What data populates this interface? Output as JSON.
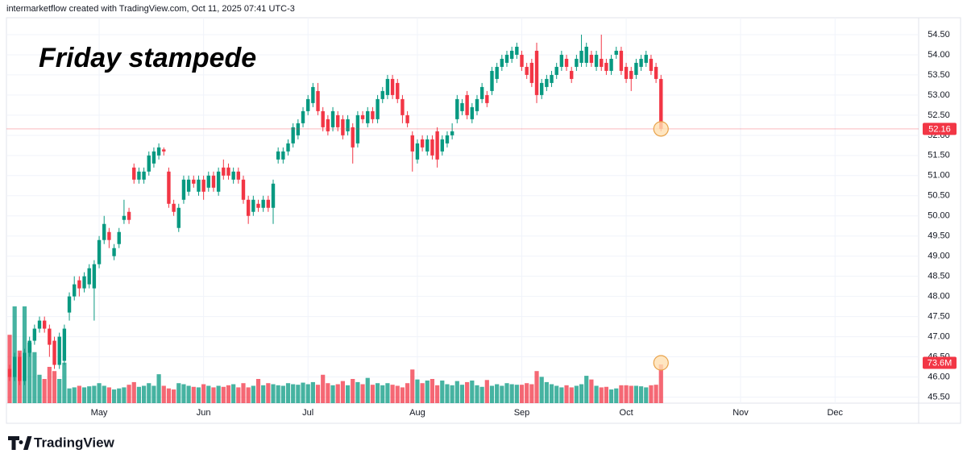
{
  "header": "intermarketflow created with TradingView.com, Oct 11, 2025 07:41 UTC-3",
  "brand": "TradingView",
  "chart_data": {
    "type": "candlestick",
    "title": "Friday stampede",
    "colors": {
      "up": "#089981",
      "down": "#f23645"
    },
    "grid": true,
    "categories": [
      null,
      null,
      null,
      null,
      null,
      null,
      null,
      null,
      null,
      null,
      null,
      null,
      null,
      null,
      null,
      null,
      null,
      null,
      "May",
      null,
      null,
      null,
      null,
      null,
      null,
      null,
      null,
      null,
      null,
      null,
      null,
      null,
      null,
      null,
      null,
      null,
      null,
      null,
      null,
      "Jun",
      null,
      null,
      null,
      null,
      null,
      null,
      null,
      null,
      null,
      null,
      null,
      null,
      null,
      null,
      null,
      null,
      null,
      null,
      null,
      null,
      "Jul",
      null,
      null,
      null,
      null,
      null,
      null,
      null,
      null,
      null,
      null,
      null,
      null,
      null,
      null,
      null,
      null,
      null,
      null,
      null,
      null,
      null,
      "Aug",
      null,
      null,
      null,
      null,
      null,
      null,
      null,
      null,
      null,
      null,
      null,
      null,
      null,
      null,
      null,
      null,
      null,
      null,
      null,
      null,
      "Sep",
      null,
      null,
      null,
      null,
      null,
      null,
      null,
      null,
      null,
      null,
      null,
      null,
      null,
      null,
      null,
      null,
      null,
      null,
      null,
      null,
      "Oct",
      null,
      null,
      null,
      null,
      null,
      null,
      null,
      null,
      null,
      null,
      null,
      null,
      null,
      null,
      null,
      null,
      null,
      null,
      null,
      null,
      null,
      null,
      "Nov",
      null,
      null,
      null,
      null,
      null,
      null,
      null,
      null,
      null,
      null,
      null,
      null,
      null,
      null,
      null,
      null,
      null,
      null,
      "Dec"
    ],
    "open": [
      46.2,
      46.0,
      46.5,
      45.9,
      46.6,
      46.9,
      47.2,
      47.4,
      47.2,
      46.9,
      46.3,
      46.4,
      47.6,
      48.0,
      48.4,
      48.2,
      48.3,
      48.2,
      48.8,
      49.4,
      49.6,
      49.0,
      49.3,
      49.9,
      50.1,
      51.2,
      50.9,
      50.9,
      51.1,
      51.3,
      51.5,
      51.65,
      51.1,
      50.3,
      49.7,
      50.4,
      50.6,
      50.9,
      50.6,
      50.9,
      50.7,
      51.0,
      50.6,
      51.2,
      51.2,
      50.9,
      51.1,
      50.9,
      50.4,
      50.1,
      50.3,
      50.2,
      50.4,
      50.2,
      51.4,
      51.4,
      51.6,
      51.8,
      52.0,
      52.3,
      52.6,
      52.8,
      53.1,
      52.6,
      52.4,
      52.2,
      52.5,
      52.4,
      52.1,
      52.2,
      51.8,
      52.5,
      52.3,
      52.6,
      52.4,
      52.9,
      53.0,
      53.4,
      53.3,
      52.9,
      52.5,
      52.0,
      51.4,
      51.9,
      51.6,
      51.9,
      52.1,
      51.6,
      51.8,
      52.0,
      52.4,
      52.6,
      53.0,
      52.4,
      52.6,
      52.9,
      53.0,
      53.1,
      53.4,
      53.7,
      53.8,
      53.9,
      54.0,
      54.0,
      53.7,
      53.8,
      54.1,
      53.0,
      53.2,
      53.3,
      53.5,
      53.7,
      53.9,
      53.6,
      53.7,
      53.8,
      53.8,
      54.0,
      53.7,
      53.9,
      53.8,
      53.6,
      54.0,
      54.1,
      53.7,
      53.6,
      53.5,
      53.7,
      53.8,
      53.9,
      53.7,
      53.4,
      null,
      null,
      null,
      null,
      null,
      null,
      null,
      null,
      null,
      null,
      null,
      null,
      null,
      null,
      null,
      null,
      null,
      null,
      null,
      null,
      null,
      null,
      null,
      null,
      null,
      null,
      null,
      null,
      null,
      null,
      null,
      null,
      null,
      null,
      null
    ],
    "high": [
      46.3,
      46.6,
      46.6,
      46.7,
      47.0,
      47.3,
      47.5,
      47.5,
      47.3,
      47.0,
      47.1,
      47.3,
      48.1,
      48.5,
      48.5,
      48.6,
      48.8,
      48.9,
      49.5,
      50.0,
      49.7,
      49.3,
      49.7,
      50.4,
      50.2,
      51.3,
      51.2,
      51.2,
      51.6,
      51.7,
      51.8,
      51.7,
      51.2,
      50.4,
      50.3,
      51.0,
      51.0,
      51.0,
      51.0,
      51.0,
      51.1,
      51.1,
      51.2,
      51.4,
      51.3,
      51.2,
      51.2,
      51.0,
      50.5,
      50.5,
      50.4,
      50.5,
      50.5,
      50.9,
      51.7,
      51.7,
      51.9,
      52.3,
      52.4,
      52.7,
      53.0,
      53.3,
      53.3,
      52.7,
      52.5,
      52.7,
      52.6,
      52.5,
      52.5,
      52.3,
      52.6,
      52.6,
      52.7,
      52.7,
      53.0,
      53.2,
      53.5,
      53.5,
      53.4,
      53.0,
      52.6,
      52.1,
      51.9,
      52.0,
      52.0,
      52.0,
      52.2,
      52.0,
      52.1,
      52.3,
      53.0,
      52.9,
      53.1,
      52.8,
      53.0,
      53.3,
      53.1,
      53.7,
      53.8,
      54.0,
      54.1,
      54.2,
      54.3,
      54.1,
      53.8,
      53.9,
      54.3,
      53.4,
      53.5,
      53.6,
      53.8,
      54.1,
      54.0,
      53.7,
      54.0,
      54.5,
      54.3,
      54.1,
      54.1,
      54.5,
      53.9,
      54.0,
      54.2,
      54.2,
      53.8,
      53.7,
      53.9,
      54.0,
      54.1,
      54.0,
      53.8,
      53.5,
      null,
      null,
      null,
      null,
      null,
      null,
      null,
      null,
      null,
      null,
      null,
      null,
      null,
      null,
      null,
      null,
      null,
      null,
      null,
      null,
      null,
      null,
      null,
      null,
      null,
      null,
      null,
      null,
      null,
      null,
      null,
      null,
      null,
      null,
      null
    ],
    "low": [
      45.9,
      45.9,
      45.8,
      45.8,
      46.5,
      46.8,
      47.1,
      47.1,
      46.5,
      46.2,
      46.2,
      46.3,
      47.4,
      47.9,
      48.0,
      48.1,
      48.2,
      47.4,
      48.7,
      49.3,
      49.2,
      48.9,
      49.2,
      49.8,
      49.8,
      50.8,
      50.8,
      50.8,
      51.0,
      51.2,
      51.4,
      51.5,
      50.2,
      50.0,
      49.6,
      50.3,
      50.5,
      50.7,
      50.5,
      50.4,
      50.6,
      50.6,
      50.5,
      50.9,
      50.9,
      50.8,
      50.8,
      50.3,
      49.8,
      50.0,
      50.1,
      50.1,
      50.1,
      49.8,
      51.3,
      51.3,
      51.5,
      51.7,
      51.9,
      52.2,
      52.5,
      52.7,
      52.5,
      52.1,
      52.0,
      52.1,
      52.1,
      51.9,
      52.0,
      51.3,
      51.7,
      52.3,
      52.2,
      52.3,
      52.3,
      52.8,
      52.9,
      52.9,
      52.8,
      52.3,
      52.2,
      51.1,
      51.3,
      51.6,
      51.5,
      51.4,
      51.2,
      51.5,
      51.7,
      51.9,
      52.3,
      52.5,
      52.4,
      52.3,
      52.5,
      52.8,
      52.7,
      53.0,
      53.3,
      53.6,
      53.7,
      53.8,
      53.9,
      53.6,
      53.4,
      53.2,
      52.8,
      52.9,
      53.1,
      53.2,
      53.4,
      53.6,
      53.6,
      53.3,
      53.6,
      53.7,
      53.7,
      53.7,
      53.6,
      53.6,
      53.5,
      53.5,
      53.9,
      53.5,
      53.3,
      53.1,
      53.4,
      53.6,
      53.7,
      53.5,
      53.3,
      52.1,
      null,
      null,
      null,
      null,
      null,
      null,
      null,
      null,
      null,
      null,
      null,
      null,
      null,
      null,
      null,
      null,
      null,
      null,
      null,
      null,
      null,
      null,
      null,
      null,
      null,
      null,
      null,
      null,
      null,
      null,
      null,
      null,
      null,
      null,
      null
    ],
    "close": [
      46.0,
      46.5,
      45.9,
      46.6,
      46.9,
      47.2,
      47.4,
      47.2,
      46.8,
      46.3,
      47.0,
      47.2,
      48.0,
      48.3,
      48.2,
      48.5,
      48.7,
      48.8,
      49.4,
      49.8,
      49.4,
      49.2,
      49.6,
      50.0,
      49.9,
      50.9,
      51.1,
      51.1,
      51.5,
      51.6,
      51.7,
      51.6,
      50.3,
      50.1,
      50.2,
      50.9,
      50.9,
      50.8,
      50.9,
      50.6,
      51.0,
      50.7,
      51.1,
      51.0,
      51.0,
      51.1,
      50.9,
      50.4,
      50.0,
      50.4,
      50.2,
      50.4,
      50.2,
      50.8,
      51.6,
      51.6,
      51.8,
      52.2,
      52.3,
      52.6,
      52.9,
      53.2,
      52.6,
      52.2,
      52.1,
      52.6,
      52.2,
      52.0,
      52.4,
      51.7,
      52.5,
      52.4,
      52.6,
      52.4,
      52.9,
      53.1,
      53.4,
      53.0,
      52.9,
      52.5,
      52.3,
      51.6,
      51.8,
      51.7,
      51.9,
      51.5,
      51.4,
      51.9,
      52.0,
      52.1,
      52.9,
      52.8,
      52.5,
      52.7,
      52.9,
      53.2,
      52.8,
      53.6,
      53.7,
      53.9,
      54.0,
      54.1,
      54.2,
      53.7,
      53.5,
      53.3,
      53.0,
      53.3,
      53.4,
      53.5,
      53.7,
      54.0,
      53.7,
      53.4,
      53.9,
      54.1,
      54.2,
      53.8,
      54.0,
      53.7,
      53.6,
      53.9,
      54.1,
      53.6,
      53.4,
      53.4,
      53.8,
      53.9,
      54.0,
      53.6,
      53.4,
      52.16,
      null,
      null,
      null,
      null,
      null,
      null,
      null,
      null,
      null,
      null,
      null,
      null,
      null,
      null,
      null,
      null,
      null,
      null,
      null,
      null,
      null,
      null,
      null,
      null,
      null,
      null,
      null,
      null,
      null,
      null,
      null,
      null,
      null,
      null,
      null
    ],
    "volume": [
      130,
      184,
      100,
      184,
      115,
      97,
      54,
      46,
      69,
      61,
      46,
      77,
      28,
      30,
      33,
      30,
      32,
      33,
      38,
      33,
      30,
      26,
      28,
      30,
      35,
      40,
      31,
      33,
      38,
      33,
      55,
      33,
      28,
      26,
      38,
      36,
      33,
      31,
      30,
      36,
      33,
      30,
      33,
      31,
      34,
      36,
      30,
      38,
      30,
      33,
      46,
      34,
      38,
      36,
      34,
      33,
      38,
      36,
      35,
      39,
      36,
      40,
      35,
      54,
      38,
      34,
      36,
      42,
      34,
      46,
      40,
      36,
      48,
      35,
      38,
      34,
      38,
      35,
      33,
      30,
      38,
      64,
      45,
      38,
      43,
      46,
      34,
      43,
      36,
      34,
      42,
      35,
      40,
      43,
      34,
      31,
      44,
      33,
      36,
      33,
      38,
      36,
      35,
      35,
      38,
      36,
      61,
      50,
      40,
      36,
      33,
      30,
      34,
      30,
      33,
      36,
      52,
      45,
      33,
      30,
      31,
      26,
      28,
      34,
      34,
      33,
      33,
      32,
      30,
      34,
      35,
      73.6,
      null,
      null,
      null,
      null,
      null,
      null,
      null,
      null,
      null,
      null,
      null,
      null,
      null,
      null,
      null,
      null,
      null,
      null,
      null,
      null,
      null,
      null,
      null,
      null,
      null,
      null,
      null,
      null,
      null,
      null,
      null,
      null,
      null,
      null,
      null
    ],
    "volume_label": "73.6M",
    "ylim": [
      45.35,
      54.92
    ],
    "yticks": [
      {
        "value": 45.5,
        "label": "45.50"
      },
      {
        "value": 46,
        "label": "46.00"
      },
      {
        "value": 46.5,
        "label": "46.50"
      },
      {
        "value": 47,
        "label": "47.00"
      },
      {
        "value": 47.5,
        "label": "47.50"
      },
      {
        "value": 48,
        "label": "48.00"
      },
      {
        "value": 48.5,
        "label": "48.50"
      },
      {
        "value": 49,
        "label": "49.00"
      },
      {
        "value": 49.5,
        "label": "49.50"
      },
      {
        "value": 50,
        "label": "50.00"
      },
      {
        "value": 50.5,
        "label": "50.50"
      },
      {
        "value": 51,
        "label": "51.00"
      },
      {
        "value": 51.5,
        "label": "51.50"
      },
      {
        "value": 52,
        "label": "52.00"
      },
      {
        "value": 52.5,
        "label": "52.50"
      },
      {
        "value": 53,
        "label": "53.00"
      },
      {
        "value": 53.5,
        "label": "53.50"
      },
      {
        "value": 54,
        "label": "54.00"
      },
      {
        "value": 54.5,
        "label": "54.50"
      }
    ]
  }
}
